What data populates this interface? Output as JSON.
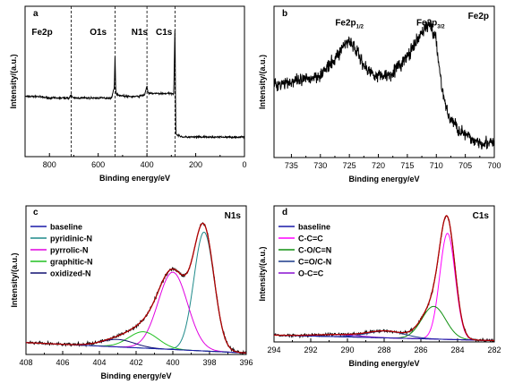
{
  "colors": {
    "frame": "#000000",
    "data": "#000000",
    "fit": "#b00000",
    "baseline": "#1a1aa8",
    "pyridinic": "#1f8a8a",
    "pyrrolic": "#e000e0",
    "graphitic": "#22c022",
    "oxidized": "#101070",
    "cc": "#ff00ff",
    "co": "#109010",
    "cooc": "#1a3a8a",
    "occ": "#8a10d0"
  },
  "chart_data": [
    {
      "panel": "a",
      "type": "line",
      "xlabel": "Binding energy/eV",
      "ylabel": "Intensity/(a.u.)",
      "xlim": [
        900,
        0
      ],
      "ylim": [
        0,
        1
      ],
      "xticks": [
        800,
        600,
        400,
        200,
        0
      ],
      "markers": [
        {
          "x": 711,
          "label": "Fe2p"
        },
        {
          "x": 531,
          "label": "O1s"
        },
        {
          "x": 400,
          "label": "N1s"
        },
        {
          "x": 285,
          "label": "C1s"
        }
      ],
      "series": [
        {
          "x": [
            900,
            850,
            800,
            750,
            720,
            711,
            705,
            650,
            600,
            545,
            534,
            531,
            528,
            520,
            480,
            440,
            410,
            400,
            395,
            380,
            340,
            300,
            290,
            285,
            282,
            280,
            270,
            250,
            200,
            150,
            100,
            50,
            0
          ],
          "y": [
            0.4,
            0.4,
            0.39,
            0.39,
            0.39,
            0.41,
            0.39,
            0.39,
            0.39,
            0.39,
            0.46,
            0.67,
            0.43,
            0.41,
            0.4,
            0.4,
            0.41,
            0.47,
            0.42,
            0.42,
            0.42,
            0.42,
            0.42,
            0.88,
            0.2,
            0.15,
            0.14,
            0.13,
            0.13,
            0.13,
            0.13,
            0.13,
            0.13
          ]
        }
      ]
    },
    {
      "panel": "b",
      "title": "Fe2p",
      "type": "line",
      "xlabel": "Binding energy/eV",
      "ylabel": "Intensity/(a.u.)",
      "xlim": [
        738,
        700
      ],
      "ylim": [
        0,
        1
      ],
      "xticks": [
        735,
        730,
        725,
        720,
        715,
        710,
        705,
        700
      ],
      "annotations": [
        {
          "base": "Fe2p",
          "sub": "1/2",
          "x": 725,
          "y": 0.86
        },
        {
          "base": "Fe2p",
          "sub": "3/2",
          "x": 711,
          "y": 0.86
        }
      ],
      "series": [
        {
          "x": [
            738,
            736,
            734,
            732,
            730,
            728,
            726,
            725,
            724,
            722,
            720,
            718,
            716,
            714,
            712,
            711,
            710,
            709,
            708,
            706,
            704,
            702,
            700
          ],
          "y": [
            0.48,
            0.5,
            0.5,
            0.52,
            0.55,
            0.62,
            0.74,
            0.78,
            0.72,
            0.58,
            0.54,
            0.55,
            0.62,
            0.72,
            0.86,
            0.88,
            0.76,
            0.45,
            0.28,
            0.18,
            0.12,
            0.1,
            0.09
          ]
        }
      ]
    },
    {
      "panel": "c",
      "title": "N1s",
      "type": "line",
      "xlabel": "Binding energy/eV",
      "ylabel": "Intensity/(a.u.)",
      "xlim": [
        408,
        396
      ],
      "ylim": [
        0,
        1
      ],
      "xticks": [
        408,
        406,
        404,
        402,
        400,
        398,
        396
      ],
      "legend": [
        "baseline",
        "pyridinic-N",
        "pyrrolic-N",
        "graphitic-N",
        "oxidized-N"
      ],
      "baseline": {
        "start": 0.08,
        "end": 0.01
      },
      "components": [
        {
          "name": "pyridinic-N",
          "center": 398.3,
          "height": 0.8,
          "width": 0.55
        },
        {
          "name": "pyrrolic-N",
          "center": 400.0,
          "height": 0.52,
          "width": 0.8
        },
        {
          "name": "graphitic-N",
          "center": 401.6,
          "height": 0.11,
          "width": 0.8
        },
        {
          "name": "oxidized-N",
          "center": 403.0,
          "height": 0.05,
          "width": 0.9
        }
      ]
    },
    {
      "panel": "d",
      "title": "C1s",
      "type": "line",
      "xlabel": "Binding energy/eV",
      "ylabel": "Intensity/(a.u.)",
      "xlim": [
        294,
        282
      ],
      "ylim": [
        0,
        1
      ],
      "xticks": [
        294,
        292,
        290,
        288,
        286,
        284,
        282
      ],
      "legend": [
        "baseline",
        "C-C=C",
        "C-O/C=N",
        "C=O/C-N",
        "O-C=C"
      ],
      "baseline": {
        "start": 0.05,
        "end": 0.01
      },
      "components": [
        {
          "name": "C-C=C",
          "center": 284.55,
          "height": 0.78,
          "width": 0.42
        },
        {
          "name": "C-O/C=N",
          "center": 285.3,
          "height": 0.24,
          "width": 0.65
        },
        {
          "name": "C=O/C-N",
          "center": 287.9,
          "height": 0.05,
          "width": 1.0
        },
        {
          "name": "O-C=C",
          "center": 290.5,
          "height": 0.015,
          "width": 1.2
        }
      ]
    }
  ]
}
